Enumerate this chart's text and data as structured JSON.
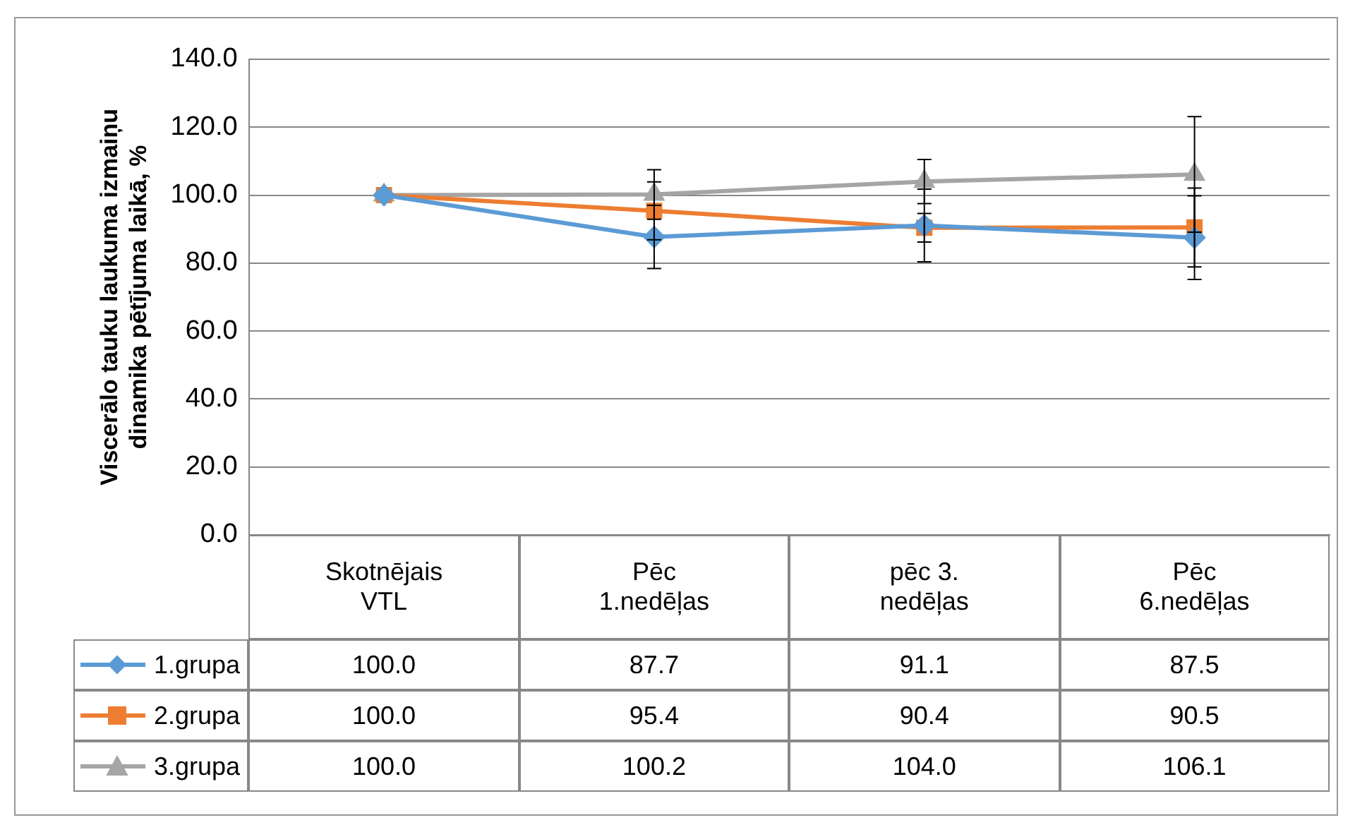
{
  "chart_data": {
    "type": "line",
    "ylabel": "Viscerālo tauku laukuma izmaiņu dinamika pētījuma laikā, %",
    "categories": [
      "Skotnējais VTL",
      "Pēc 1.nedēļas",
      "pēc 3. nedēļas",
      "Pēc 6.nedēļas"
    ],
    "series": [
      {
        "name": "1.grupa",
        "color": "#5b9bd5",
        "marker": "diamond",
        "values": [
          100.0,
          87.7,
          91.1,
          87.5
        ],
        "value_labels": [
          "100.0",
          "87.7",
          "91.1",
          "87.5"
        ],
        "errors": [
          null,
          9.3,
          10.7,
          12.3
        ]
      },
      {
        "name": "2.grupa",
        "color": "#ed7d31",
        "marker": "square",
        "values": [
          100.0,
          95.4,
          90.4,
          90.5
        ],
        "value_labels": [
          "100.0",
          "95.4",
          "90.4",
          "90.5"
        ],
        "errors": [
          null,
          8.5,
          4.2,
          11.6
        ]
      },
      {
        "name": "3.grupa",
        "color": "#a5a5a5",
        "marker": "triangle",
        "values": [
          100.0,
          100.2,
          104.0,
          106.1
        ],
        "value_labels": [
          "100.0",
          "100.2",
          "104.0",
          "106.1"
        ],
        "errors": [
          null,
          7.3,
          6.5,
          17.0
        ]
      }
    ],
    "ylim": [
      0,
      140
    ],
    "yticks": [
      {
        "value": 0,
        "label": "0.0"
      },
      {
        "value": 20,
        "label": "20.0"
      },
      {
        "value": 40,
        "label": "40.0"
      },
      {
        "value": 60,
        "label": "60.0"
      },
      {
        "value": 80,
        "label": "80.0"
      },
      {
        "value": 100,
        "label": "100.0"
      },
      {
        "value": 120,
        "label": "120.0"
      },
      {
        "value": 140,
        "label": "140.0"
      }
    ],
    "grid": "y",
    "legend": "bottom"
  }
}
